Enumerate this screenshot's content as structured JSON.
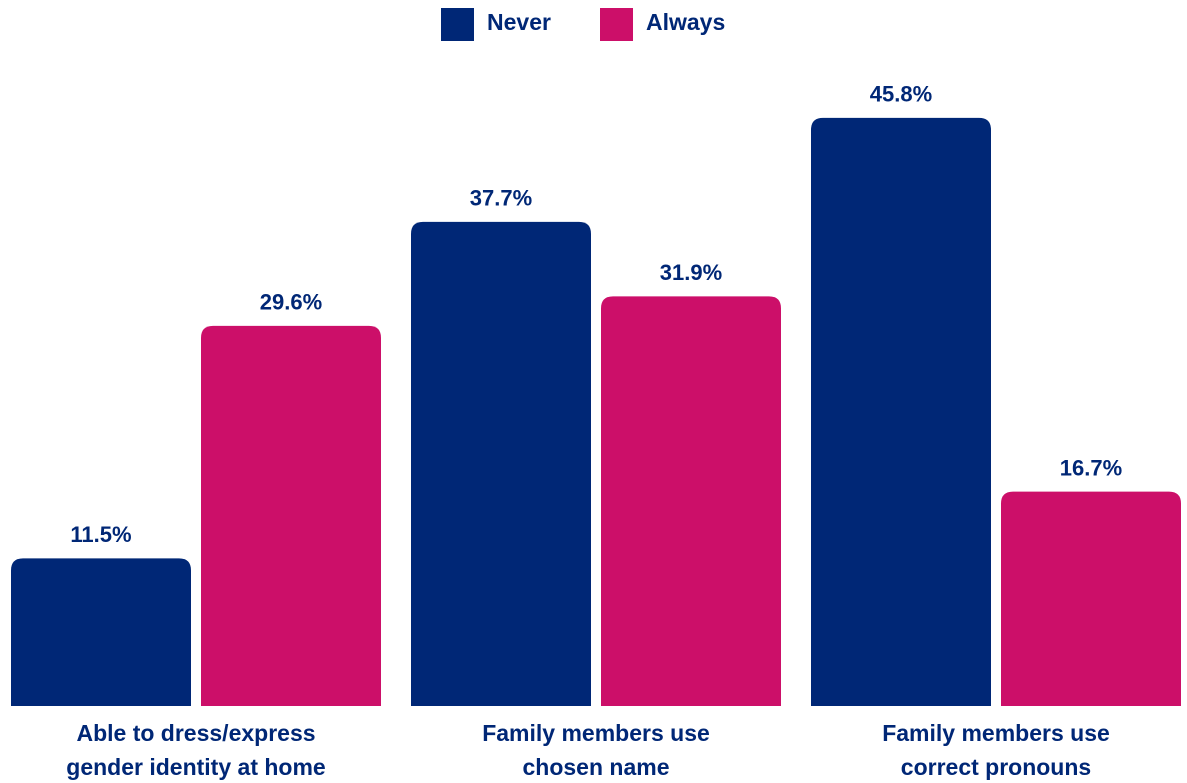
{
  "chart_data": {
    "type": "bar",
    "categories": [
      "Able to dress/express\ngender identity at home",
      "Family members use\nchosen name",
      "Family members use\ncorrect pronouns"
    ],
    "series": [
      {
        "name": "Never",
        "color": "#002776",
        "values": [
          11.5,
          37.7,
          45.8
        ],
        "value_labels": [
          "11.5%",
          "37.7%",
          "45.8%"
        ]
      },
      {
        "name": "Always",
        "color": "#cc0f69",
        "values": [
          29.6,
          31.9,
          16.7
        ],
        "value_labels": [
          "29.6%",
          "31.9%",
          "16.7%"
        ]
      }
    ],
    "legend": "top"
  }
}
